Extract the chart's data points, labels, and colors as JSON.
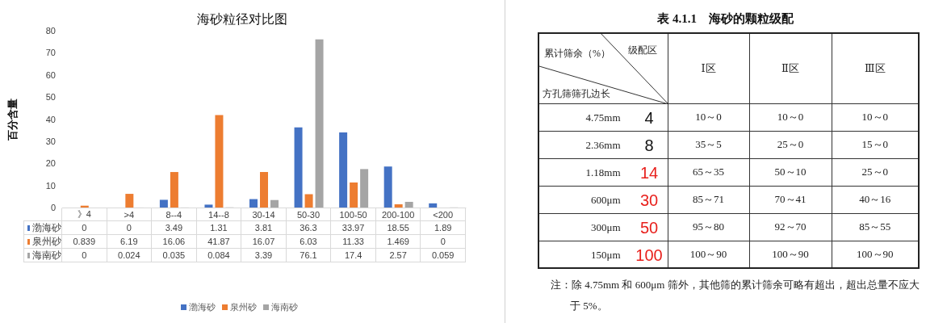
{
  "chart_data": [
    {
      "type": "bar",
      "title": "海砂粒径对比图",
      "ylabel": "百分含量",
      "categories": [
        "》4",
        ">4",
        "8--4",
        "14--8",
        "30-14",
        "50-30",
        "100-50",
        "200-100",
        "<200"
      ],
      "series": [
        {
          "name": "渤海砂",
          "color": "#4472c4",
          "values": [
            0,
            0,
            3.49,
            1.31,
            3.81,
            36.3,
            33.97,
            18.55,
            1.89
          ]
        },
        {
          "name": "泉州砂",
          "color": "#ed7d31",
          "values": [
            0.839,
            6.19,
            16.06,
            41.87,
            16.07,
            6.03,
            11.33,
            1.469,
            0
          ]
        },
        {
          "name": "海南砂",
          "color": "#a5a5a5",
          "values": [
            0,
            0.024,
            0.035,
            0.084,
            3.39,
            76.1,
            17.4,
            2.57,
            0.059
          ]
        }
      ],
      "ylim": [
        0,
        80
      ],
      "yticks": [
        0,
        10,
        20,
        30,
        40,
        50,
        60,
        70,
        80
      ],
      "grid": false,
      "legend": "bottom",
      "data_labels": true
    },
    {
      "type": "other",
      "title": "表 4.1.1　海砂的颗粒级配",
      "xlabel": "级配区",
      "ylabel": "方孔筛筛孔边长",
      "categories": [
        "Ⅰ区",
        "Ⅱ区",
        "Ⅲ区"
      ],
      "y_categories": [
        "4.75mm",
        "2.36mm",
        "1.18mm",
        "600μm",
        "300μm",
        "150μm"
      ],
      "y2_categories": [
        "4",
        "8",
        "14",
        "30",
        "50",
        "100"
      ],
      "colors": [
        "#111111",
        "#111111",
        "#e8201c",
        "#e8201c",
        "#e8201c",
        "#e8201c"
      ],
      "cell_labels": [
        [
          "10～0",
          "10～0",
          "10～0"
        ],
        [
          "35～5",
          "25～0",
          "15～0"
        ],
        [
          "65～35",
          "50～10",
          "25～0"
        ],
        [
          "85～71",
          "70～41",
          "40～16"
        ],
        [
          "95～80",
          "92～70",
          "85～55"
        ],
        [
          "100～90",
          "100～90",
          "100～90"
        ]
      ],
      "annotations": [
        "累计筛余（%）",
        "注：除 4.75mm 和 600μm 筛外，其他筛的累计筛余可略有超出，超出总量不应大于 5%。"
      ]
    }
  ]
}
